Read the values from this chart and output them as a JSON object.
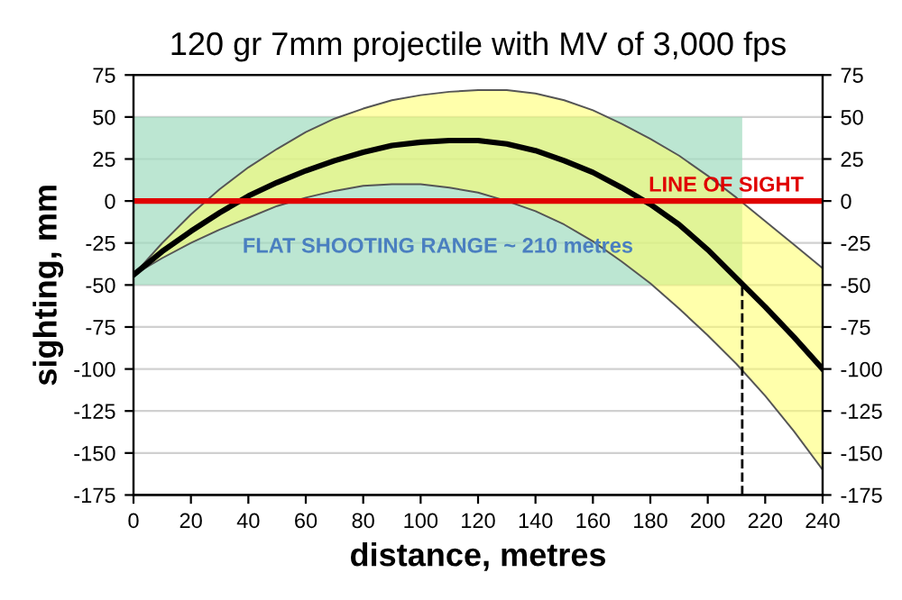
{
  "chart_data": {
    "type": "line",
    "title": "120 gr 7mm projectile with MV of 3,000 fps",
    "xlabel": "distance, metres",
    "ylabel": "sighting, mm",
    "x": [
      0,
      10,
      20,
      30,
      40,
      50,
      60,
      70,
      80,
      90,
      100,
      110,
      120,
      130,
      140,
      150,
      160,
      170,
      180,
      190,
      200,
      210,
      220,
      230,
      240
    ],
    "series": [
      {
        "color": "#000000",
        "values": [
          -44,
          -30,
          -18,
          -7,
          3,
          11,
          18,
          24,
          29,
          33,
          35,
          36,
          36,
          34,
          30,
          24,
          17,
          8,
          -2,
          -14,
          -29,
          -46,
          -63,
          -81,
          -100
        ],
        "upper": [
          -44,
          -25,
          -8,
          7,
          20,
          31,
          41,
          49,
          55,
          60,
          63,
          65,
          66,
          66,
          64,
          60,
          54,
          46,
          37,
          27,
          15,
          2,
          -12,
          -26,
          -40
        ],
        "lower": [
          -44,
          -34,
          -25,
          -17,
          -10,
          -3,
          2,
          6,
          9,
          10,
          10,
          8,
          5,
          0,
          -6,
          -14,
          -24,
          -36,
          -49,
          -64,
          -80,
          -97,
          -116,
          -137,
          -160
        ]
      }
    ],
    "xlim": [
      0,
      240
    ],
    "xticks": [
      0,
      20,
      40,
      60,
      80,
      100,
      120,
      140,
      160,
      180,
      200,
      220,
      240
    ],
    "ylim": [
      -175,
      75
    ],
    "yticks": [
      -175,
      -150,
      -125,
      -100,
      -75,
      -50,
      -25,
      0,
      25,
      50,
      75
    ],
    "y2lim": [
      -175,
      75
    ],
    "y2ticks": [
      -175,
      -150,
      -125,
      -100,
      -75,
      -50,
      -25,
      0,
      25,
      50,
      75
    ],
    "grid": "y",
    "legend": false,
    "ref_lines": [
      {
        "axis": "y",
        "value": 0,
        "label": "LINE OF SIGHT",
        "color": "#e00000"
      },
      {
        "axis": "x",
        "value": 212,
        "line_style": "dashed",
        "color": "#000000"
      }
    ],
    "bands": [
      {
        "axis": "y",
        "from": -50,
        "to": 50,
        "label": "FLAT SHOOTING RANGE ~ 210 metres",
        "color": "#9fdcbf"
      }
    ]
  }
}
